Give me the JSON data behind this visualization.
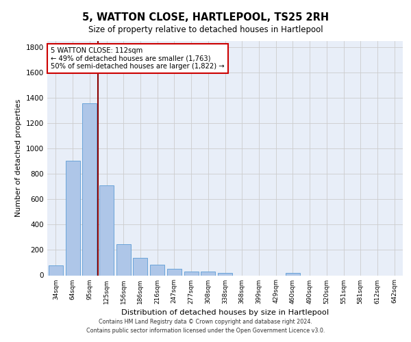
{
  "title": "5, WATTON CLOSE, HARTLEPOOL, TS25 2RH",
  "subtitle": "Size of property relative to detached houses in Hartlepool",
  "xlabel": "Distribution of detached houses by size in Hartlepool",
  "ylabel": "Number of detached properties",
  "categories": [
    "34sqm",
    "64sqm",
    "95sqm",
    "125sqm",
    "156sqm",
    "186sqm",
    "216sqm",
    "247sqm",
    "277sqm",
    "308sqm",
    "338sqm",
    "368sqm",
    "399sqm",
    "429sqm",
    "460sqm",
    "490sqm",
    "520sqm",
    "551sqm",
    "581sqm",
    "612sqm",
    "642sqm"
  ],
  "values": [
    80,
    905,
    1360,
    710,
    245,
    140,
    85,
    50,
    30,
    30,
    20,
    0,
    0,
    0,
    20,
    0,
    0,
    0,
    0,
    0,
    0
  ],
  "bar_color": "#aec6e8",
  "bar_edge_color": "#5b9bd5",
  "grid_color": "#cccccc",
  "vline_color": "#8b0000",
  "annotation_text": "5 WATTON CLOSE: 112sqm\n← 49% of detached houses are smaller (1,763)\n50% of semi-detached houses are larger (1,822) →",
  "annotation_box_color": "#ffffff",
  "annotation_box_edge": "#cc0000",
  "ylim": [
    0,
    1850
  ],
  "yticks": [
    0,
    200,
    400,
    600,
    800,
    1000,
    1200,
    1400,
    1600,
    1800
  ],
  "bg_color": "#ffffff",
  "plot_bg_color": "#e8eef8",
  "footer_line1": "Contains HM Land Registry data © Crown copyright and database right 2024.",
  "footer_line2": "Contains public sector information licensed under the Open Government Licence v3.0."
}
